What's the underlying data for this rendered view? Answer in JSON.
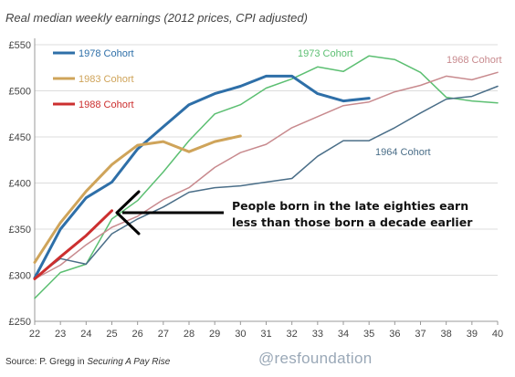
{
  "chart_data": {
    "type": "line",
    "title": "Real median weekly earnings (2012 prices, CPI adjusted)",
    "xlabel": "",
    "ylabel": "",
    "x_ticks": [
      22,
      23,
      24,
      25,
      26,
      27,
      28,
      29,
      30,
      31,
      32,
      33,
      34,
      35,
      36,
      37,
      38,
      39,
      40
    ],
    "y_ticks": [
      "£250",
      "£300",
      "£350",
      "£400",
      "£450",
      "£500",
      "£550"
    ],
    "xlim": [
      22,
      40
    ],
    "ylim": [
      250,
      555
    ],
    "grid": "horizontal",
    "legend": "top-left",
    "series": [
      {
        "name": "1978 Cohort",
        "color": "#2e6fa8",
        "width": 3,
        "points": [
          [
            22,
            297
          ],
          [
            23,
            350
          ],
          [
            24,
            384
          ],
          [
            25,
            401
          ],
          [
            26,
            437
          ],
          [
            27,
            461
          ],
          [
            28,
            485
          ],
          [
            29,
            497
          ],
          [
            30,
            505
          ],
          [
            31,
            516
          ],
          [
            32,
            516
          ],
          [
            33,
            497
          ],
          [
            34,
            489
          ],
          [
            35,
            492
          ]
        ]
      },
      {
        "name": "1983 Cohort",
        "color": "#cfa45a",
        "width": 3,
        "points": [
          [
            22,
            314
          ],
          [
            23,
            357
          ],
          [
            24,
            391
          ],
          [
            25,
            420
          ],
          [
            26,
            441
          ],
          [
            27,
            445
          ],
          [
            28,
            434
          ],
          [
            29,
            445
          ],
          [
            30,
            451
          ]
        ]
      },
      {
        "name": "1988 Cohort",
        "color": "#cc2f2f",
        "width": 3,
        "points": [
          [
            22,
            296
          ],
          [
            23,
            320
          ],
          [
            24,
            343
          ],
          [
            25,
            370
          ]
        ]
      },
      {
        "name": "1973 Cohort",
        "color": "#5cbf72",
        "width": 1.5,
        "points": [
          [
            22,
            275
          ],
          [
            23,
            303
          ],
          [
            24,
            312
          ],
          [
            25,
            361
          ],
          [
            26,
            381
          ],
          [
            27,
            412
          ],
          [
            28,
            446
          ],
          [
            29,
            475
          ],
          [
            30,
            485
          ],
          [
            31,
            503
          ],
          [
            32,
            513
          ],
          [
            33,
            526
          ],
          [
            34,
            521
          ],
          [
            35,
            538
          ],
          [
            36,
            534
          ],
          [
            37,
            520
          ],
          [
            38,
            493
          ],
          [
            39,
            489
          ],
          [
            40,
            487
          ]
        ]
      },
      {
        "name": "1968 Cohort",
        "color": "#c88a8e",
        "width": 1.5,
        "points": [
          [
            22,
            296
          ],
          [
            23,
            311
          ],
          [
            24,
            333
          ],
          [
            25,
            352
          ],
          [
            26,
            364
          ],
          [
            27,
            382
          ],
          [
            28,
            395
          ],
          [
            29,
            417
          ],
          [
            30,
            433
          ],
          [
            31,
            442
          ],
          [
            32,
            460
          ],
          [
            33,
            472
          ],
          [
            34,
            484
          ],
          [
            35,
            488
          ],
          [
            36,
            499
          ],
          [
            37,
            506
          ],
          [
            38,
            516
          ],
          [
            39,
            512
          ],
          [
            40,
            520
          ]
        ]
      },
      {
        "name": "1964 Cohort",
        "color": "#4a6e88",
        "width": 1.5,
        "points": [
          [
            22,
            297
          ],
          [
            23,
            318
          ],
          [
            24,
            312
          ],
          [
            25,
            345
          ],
          [
            26,
            361
          ],
          [
            27,
            374
          ],
          [
            28,
            390
          ],
          [
            29,
            395
          ],
          [
            30,
            397
          ],
          [
            31,
            401
          ],
          [
            32,
            405
          ],
          [
            33,
            429
          ],
          [
            34,
            446
          ],
          [
            35,
            446
          ],
          [
            36,
            460
          ],
          [
            37,
            476
          ],
          [
            38,
            491
          ],
          [
            39,
            494
          ],
          [
            40,
            505
          ]
        ]
      }
    ],
    "annotation": {
      "lines": [
        "People born in the late eighties earn",
        "less than those born a decade earlier"
      ]
    },
    "source": {
      "prefix": "Source: P. Gregg in ",
      "title": "Securing A Pay Rise"
    },
    "brand": "@resfoundation"
  }
}
